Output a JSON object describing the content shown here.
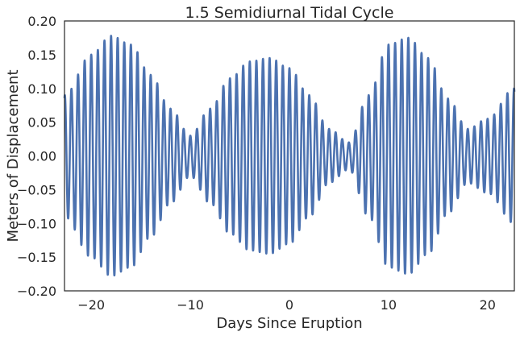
{
  "chart_data": {
    "type": "line",
    "title": "1.5 Semidiurnal Tidal Cycle",
    "xlabel": "Days Since Eruption",
    "ylabel": "Meters of Displacement",
    "xlim": [
      -22.7,
      22.7
    ],
    "ylim": [
      -0.2,
      0.2
    ],
    "xticks": [
      -20,
      -10,
      0,
      10,
      20
    ],
    "xtick_labels": [
      "−20",
      "−10",
      "0",
      "10",
      "20"
    ],
    "yticks": [
      -0.2,
      -0.15,
      -0.1,
      -0.05,
      0.0,
      0.05,
      0.1,
      0.15,
      0.2
    ],
    "ytick_labels": [
      "−0.20",
      "−0.15",
      "−0.10",
      "−0.05",
      "0.00",
      "0.05",
      "0.10",
      "0.15",
      "0.20"
    ],
    "grid": false,
    "line_color": "#4c72b0",
    "series": [
      {
        "name": "",
        "cycles_per_day": 1.5,
        "envelope_x": [
          -22.7,
          -20,
          -18,
          -16,
          -14,
          -12,
          -10,
          -8,
          -6,
          -4,
          -2,
          0,
          2,
          4,
          6,
          8,
          10,
          12,
          14,
          16,
          18,
          20,
          22.7
        ],
        "envelope_y": [
          0.09,
          0.15,
          0.178,
          0.165,
          0.12,
          0.07,
          0.03,
          0.07,
          0.115,
          0.14,
          0.145,
          0.13,
          0.09,
          0.04,
          0.02,
          0.09,
          0.165,
          0.175,
          0.145,
          0.085,
          0.04,
          0.055,
          0.1
        ]
      }
    ]
  }
}
